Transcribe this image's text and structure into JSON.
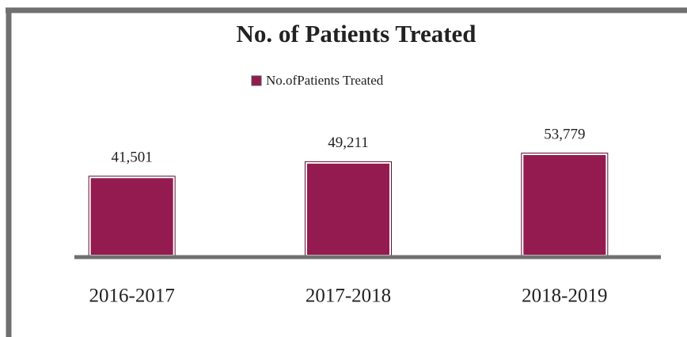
{
  "chart_data": {
    "type": "bar",
    "title": "No. of Patients Treated",
    "categories": [
      "2016-2017",
      "2017-2018",
      "2018-2019"
    ],
    "series": [
      {
        "name": "No.ofPatients Treated",
        "color": "#941b4f",
        "values": [
          41501,
          49211,
          53779
        ],
        "value_labels": [
          "41,501",
          "49,211",
          "53,779"
        ]
      }
    ]
  }
}
